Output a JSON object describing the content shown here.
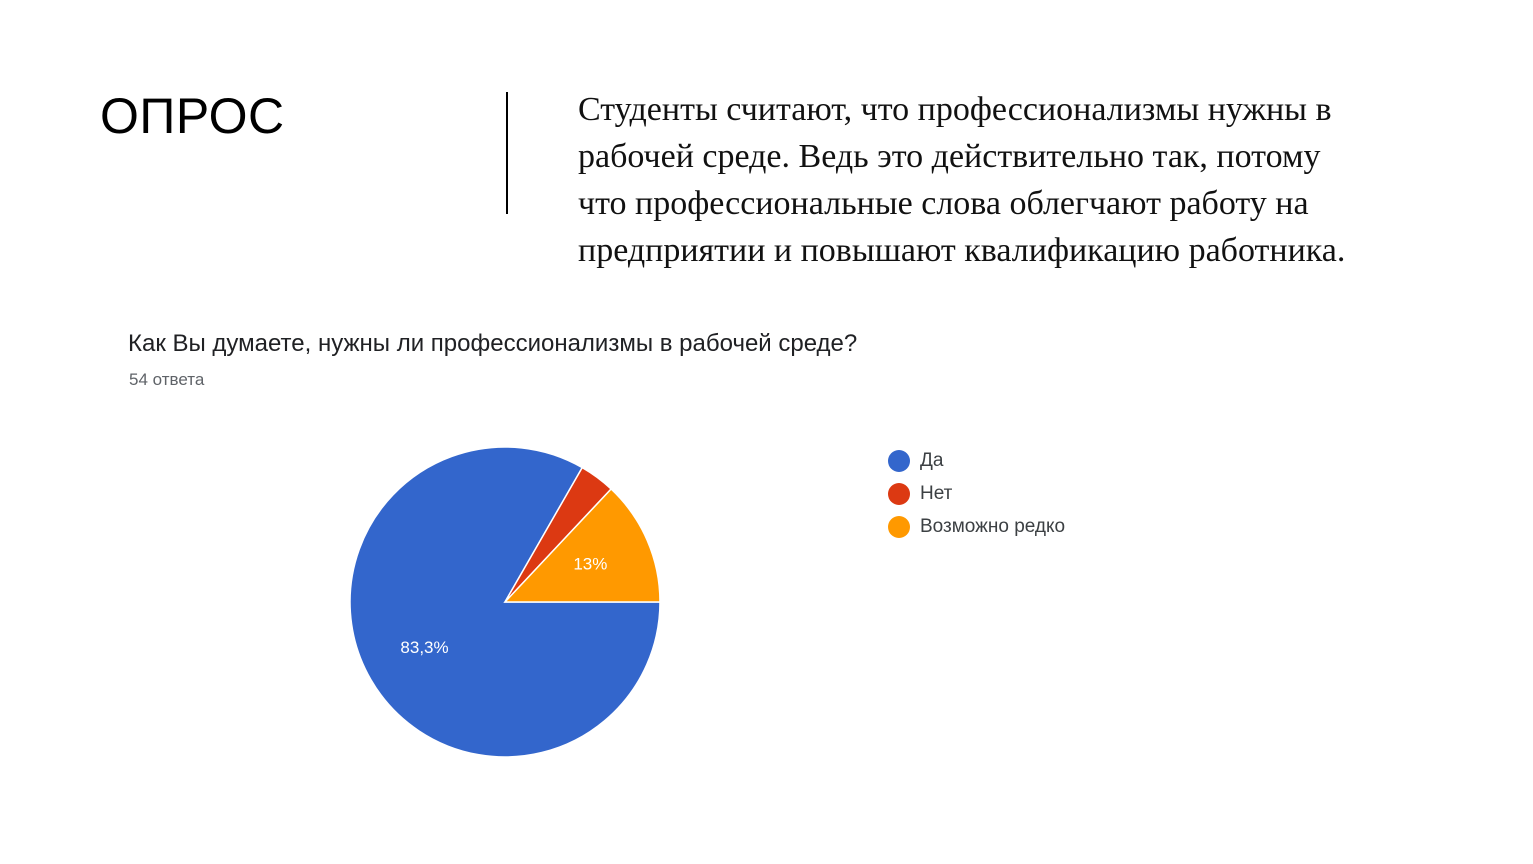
{
  "slide": {
    "title": "ОПРОС",
    "body_lines": [
      "Студенты считают, что профессионализмы нужны в",
      "рабочей среде. Ведь это действительно так, потому",
      "что профессиональные слова облегчают работу на",
      "предприятии и повышают квалификацию работника."
    ]
  },
  "chart_data": {
    "type": "pie",
    "title": "Как Вы думаете, нужны ли профессионализмы в рабочей среде?",
    "subtitle": "54 ответа",
    "legend_position": "right",
    "slices": [
      {
        "name": "Да",
        "value": 83.3,
        "label": "83,3%",
        "color": "#3366cc"
      },
      {
        "name": "Нет",
        "value": 3.7,
        "label": "",
        "color": "#dc3912"
      },
      {
        "name": "Возможно редко",
        "value": 13.0,
        "label": "13%",
        "color": "#ff9900"
      }
    ]
  }
}
